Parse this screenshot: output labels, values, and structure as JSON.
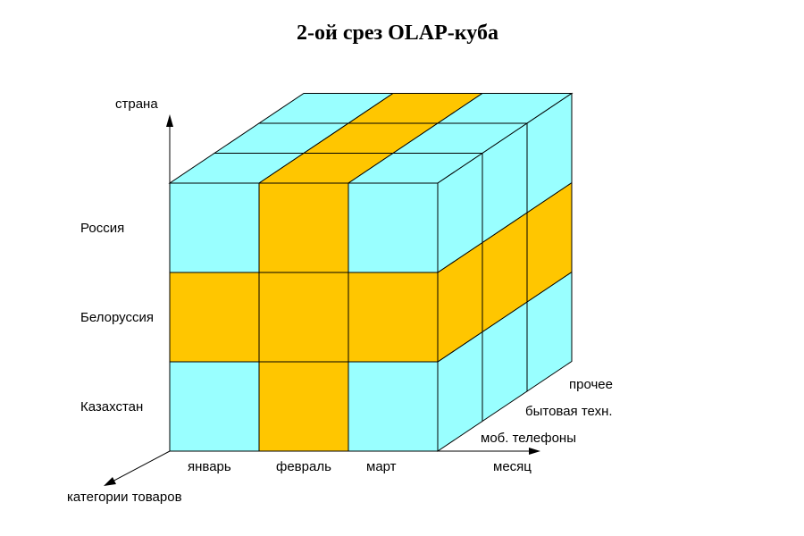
{
  "title": "2-ой срез OLAP-куба",
  "colors": {
    "base": "#99FFFF",
    "slice": "#FFC600",
    "line": "#000000"
  },
  "axes": {
    "vertical": "страна",
    "horizontal": "месяц",
    "depth": "категории товаров"
  },
  "countries": [
    "Россия",
    "Белоруссия",
    "Казахстан"
  ],
  "months": [
    "январь",
    "февраль",
    "март"
  ],
  "categories": [
    "моб. телефоны",
    "бытовая техн.",
    "прочее"
  ],
  "highlight": {
    "country": "Белоруссия",
    "month": "февраль"
  }
}
